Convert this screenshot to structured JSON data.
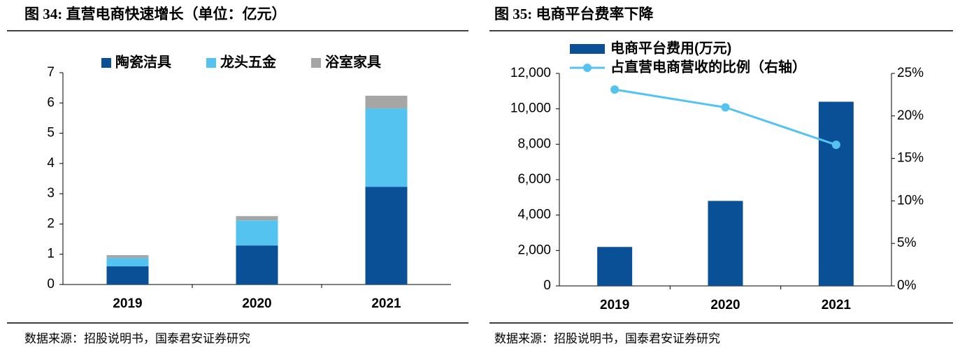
{
  "chart_data": [
    {
      "type": "bar",
      "stacked": true,
      "title": "图 34: 直营电商快速增长（单位：亿元）",
      "categories": [
        "2019",
        "2020",
        "2021"
      ],
      "series": [
        {
          "name": "陶瓷洁具",
          "color": "#0a5096",
          "values": [
            0.6,
            1.29,
            3.23
          ]
        },
        {
          "name": "龙头五金",
          "color": "#55c3f0",
          "values": [
            0.28,
            0.83,
            2.59
          ]
        },
        {
          "name": "浴室家具",
          "color": "#a6a6a6",
          "values": [
            0.09,
            0.14,
            0.42
          ]
        }
      ],
      "ylim": [
        0,
        7
      ],
      "yticks": [
        0,
        1,
        2,
        3,
        4,
        5,
        6,
        7
      ],
      "source": "数据来源：招股说明书，国泰君安证券研究"
    },
    {
      "type": "bar",
      "stacked": false,
      "title": "图 35: 电商平台费率下降",
      "categories": [
        "2019",
        "2020",
        "2021"
      ],
      "series": [
        {
          "name": "电商平台费用(万元)",
          "color": "#0a5096",
          "values": [
            2200,
            4800,
            10400
          ]
        },
        {
          "name": "占直营电商营收的比例（右轴）",
          "color": "#55c3f0",
          "type": "line",
          "axis": "y2",
          "values": [
            23.1,
            21.0,
            16.6
          ]
        }
      ],
      "ylim": [
        0,
        12000
      ],
      "yticks": [
        0,
        {
          "value": 2000,
          "label": "2,000"
        },
        {
          "value": 4000,
          "label": "4,000"
        },
        {
          "value": 6000,
          "label": "6,000"
        },
        {
          "value": 8000,
          "label": "8,000"
        },
        {
          "value": 10000,
          "label": "10,000"
        },
        {
          "value": 12000,
          "label": "12,000"
        }
      ],
      "y2lim": [
        0,
        25
      ],
      "y2ticks": [
        {
          "value": 0,
          "label": "0%"
        },
        {
          "value": 5,
          "label": "5%"
        },
        {
          "value": 10,
          "label": "10%"
        },
        {
          "value": 15,
          "label": "15%"
        },
        {
          "value": 20,
          "label": "20%"
        },
        {
          "value": 25,
          "label": "25%"
        }
      ],
      "source": "数据来源：招股说明书，国泰君安证券研究"
    }
  ]
}
